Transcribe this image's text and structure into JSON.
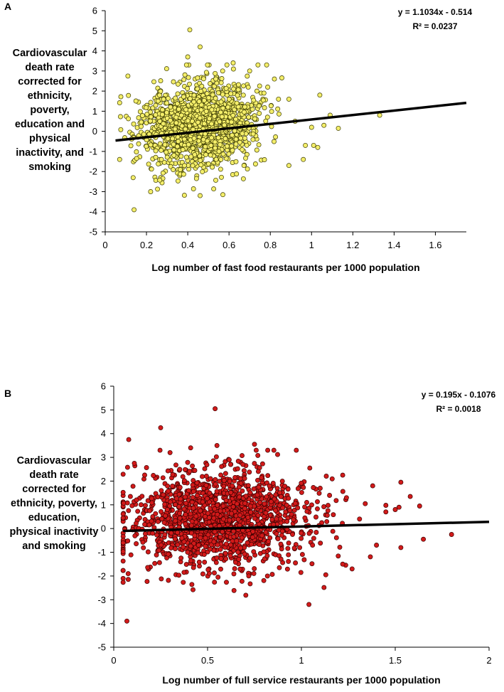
{
  "chart_data": [
    {
      "panel": "A",
      "type": "scatter",
      "point_color": "#f4ee6a",
      "point_stroke": "#3a3a00",
      "xlabel": "Log number of fast food restaurants per 1000 population",
      "ylabel_lines": [
        "Cardiovascular",
        "death rate",
        "corrected for",
        "ethnicity,",
        "poverty,",
        "education and",
        "physical",
        "inactivity, and",
        "smoking"
      ],
      "xlim": [
        0,
        1.75
      ],
      "ylim": [
        -5,
        6
      ],
      "xticks": [
        0,
        0.2,
        0.4,
        0.6,
        0.8,
        1,
        1.2,
        1.4,
        1.6
      ],
      "xtick_labels": [
        "0",
        "0.2",
        "0.4",
        "0.6",
        "0.8",
        "1",
        "1.2",
        "1.4",
        "1.6"
      ],
      "yticks": [
        -5,
        -4,
        -3,
        -2,
        -1,
        0,
        1,
        2,
        3,
        4,
        5,
        6
      ],
      "equation": "y = 1.1034x - 0.514",
      "r2_label": "R² = 0.0237",
      "trendline": {
        "slope": 1.1034,
        "intercept": -0.514,
        "x_range": [
          0.05,
          1.75
        ]
      },
      "cloud": {
        "n": 1500,
        "x_center": 0.45,
        "x_sd": 0.14,
        "x_min": 0.07,
        "x_max": 0.95,
        "y_sd": 1.05,
        "seed": 11
      },
      "points": [
        {
          "x": 0.41,
          "y": 5.05
        },
        {
          "x": 0.46,
          "y": 4.2
        },
        {
          "x": 0.14,
          "y": -3.9
        },
        {
          "x": 1.33,
          "y": 0.8
        },
        {
          "x": 1.13,
          "y": 0.15
        },
        {
          "x": 1.09,
          "y": 0.8
        },
        {
          "x": 1.04,
          "y": 1.8
        },
        {
          "x": 1.06,
          "y": 0.3
        },
        {
          "x": 1.03,
          "y": -0.8
        },
        {
          "x": 1.01,
          "y": -0.7
        },
        {
          "x": 0.97,
          "y": -0.7
        },
        {
          "x": 0.96,
          "y": -1.4
        },
        {
          "x": 1.0,
          "y": 0.2
        },
        {
          "x": 0.82,
          "y": 2.6
        },
        {
          "x": 0.84,
          "y": 1.6
        },
        {
          "x": 0.89,
          "y": 1.6
        },
        {
          "x": 0.7,
          "y": 3.0
        },
        {
          "x": 0.62,
          "y": 3.4
        },
        {
          "x": 0.57,
          "y": -3.15
        },
        {
          "x": 0.46,
          "y": -3.2
        },
        {
          "x": 0.22,
          "y": -3.0
        },
        {
          "x": 0.11,
          "y": 2.75
        },
        {
          "x": 0.4,
          "y": 3.7
        },
        {
          "x": 0.89,
          "y": -1.7
        },
        {
          "x": 0.92,
          "y": 0.5
        }
      ]
    },
    {
      "panel": "B",
      "type": "scatter",
      "point_color": "#d21a1a",
      "point_stroke": "#3a0000",
      "xlabel": "Log number of full service restaurants per 1000 population",
      "ylabel_lines": [
        "Cardiovascular",
        "death rate",
        "corrected for",
        "ethnicity, poverty,",
        "education,",
        "physical inactivity",
        "and  smoking"
      ],
      "xlim": [
        0,
        2
      ],
      "ylim": [
        -5,
        6
      ],
      "xticks": [
        0,
        0.5,
        1,
        1.5,
        2
      ],
      "xtick_labels": [
        "0",
        "0.5",
        "1",
        "1.5",
        "2"
      ],
      "yticks": [
        -5,
        -4,
        -3,
        -2,
        -1,
        0,
        1,
        2,
        3,
        4,
        5,
        6
      ],
      "equation": "y = 0.195x - 0.1076",
      "r2_label": "R² = 0.0018",
      "trendline": {
        "slope": 0.195,
        "intercept": -0.1076,
        "x_range": [
          0.05,
          2.0
        ]
      },
      "cloud": {
        "n": 1500,
        "x_center": 0.55,
        "x_sd": 0.24,
        "x_min": 0.05,
        "x_max": 1.45,
        "y_sd": 1.05,
        "seed": 23
      },
      "points": [
        {
          "x": 0.54,
          "y": 5.05
        },
        {
          "x": 0.25,
          "y": 4.25
        },
        {
          "x": 0.08,
          "y": 3.75
        },
        {
          "x": 0.07,
          "y": -3.9
        },
        {
          "x": 1.04,
          "y": -3.2
        },
        {
          "x": 1.8,
          "y": -0.25
        },
        {
          "x": 1.63,
          "y": 0.95
        },
        {
          "x": 1.58,
          "y": 1.35
        },
        {
          "x": 1.53,
          "y": 1.95
        },
        {
          "x": 1.52,
          "y": 0.9
        },
        {
          "x": 1.5,
          "y": 0.8
        },
        {
          "x": 1.53,
          "y": -0.8
        },
        {
          "x": 1.65,
          "y": -0.45
        },
        {
          "x": 1.45,
          "y": 0.7
        },
        {
          "x": 1.38,
          "y": 1.8
        },
        {
          "x": 1.4,
          "y": -0.7
        },
        {
          "x": 1.27,
          "y": -1.7
        },
        {
          "x": 1.22,
          "y": 2.25
        },
        {
          "x": 1.24,
          "y": 1.3
        },
        {
          "x": 1.31,
          "y": 0.4
        },
        {
          "x": 1.13,
          "y": -1.95
        },
        {
          "x": 1.22,
          "y": -1.5
        },
        {
          "x": 0.75,
          "y": 3.55
        },
        {
          "x": 0.55,
          "y": 3.5
        },
        {
          "x": 0.41,
          "y": 3.4
        },
        {
          "x": 0.3,
          "y": 3.2
        },
        {
          "x": 1.1,
          "y": 1.7
        },
        {
          "x": 1.15,
          "y": 1.4
        },
        {
          "x": 1.34,
          "y": 1.05
        },
        {
          "x": 0.11,
          "y": 2.75
        }
      ]
    }
  ]
}
